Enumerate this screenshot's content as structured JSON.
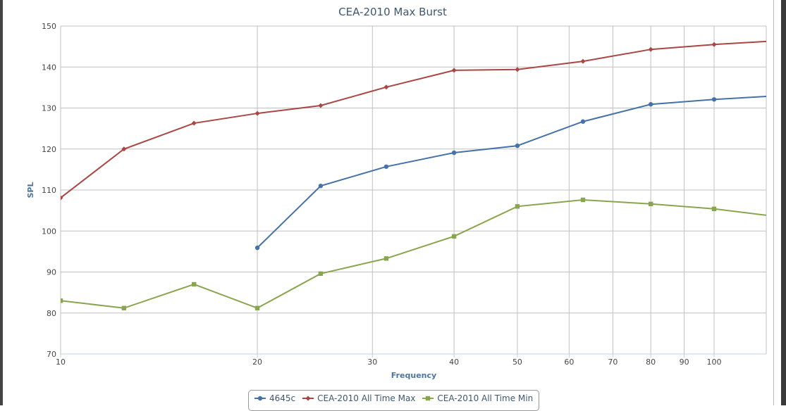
{
  "chart_data": {
    "type": "line",
    "title": "CEA-2010 Max Burst",
    "xlabel": "Frequency",
    "ylabel": "SPL",
    "xscale": "log",
    "xlim": [
      10,
      120
    ],
    "ylim": [
      70,
      150
    ],
    "xticks": [
      10,
      20,
      30,
      40,
      50,
      60,
      70,
      80,
      90,
      100
    ],
    "yticks": [
      70,
      80,
      90,
      100,
      110,
      120,
      130,
      140,
      150
    ],
    "grid": true,
    "legend_position": "bottom-center",
    "series": [
      {
        "name": "4645c",
        "color": "#4572a7",
        "marker": "circle",
        "x": [
          20,
          25,
          31.5,
          40,
          50,
          63,
          80,
          100,
          125
        ],
        "y": [
          95.9,
          111.0,
          115.7,
          119.1,
          120.8,
          126.7,
          130.9,
          132.1,
          133.0
        ]
      },
      {
        "name": "CEA-2010 All Time Max",
        "color": "#aa4643",
        "marker": "diamond",
        "x": [
          10,
          12.5,
          16,
          20,
          25,
          31.5,
          40,
          50,
          63,
          80,
          100,
          125
        ],
        "y": [
          108.1,
          120.0,
          126.3,
          128.7,
          130.6,
          135.1,
          139.2,
          139.4,
          141.4,
          144.3,
          145.5,
          146.4
        ]
      },
      {
        "name": "CEA-2010 All Time Min",
        "color": "#89a54e",
        "marker": "square",
        "x": [
          10,
          12.5,
          16,
          20,
          25,
          31.5,
          40,
          50,
          63,
          80,
          100,
          125
        ],
        "y": [
          83.0,
          81.2,
          87.0,
          81.2,
          89.6,
          93.3,
          98.7,
          106.0,
          107.6,
          106.6,
          105.4,
          103.5
        ]
      }
    ]
  }
}
